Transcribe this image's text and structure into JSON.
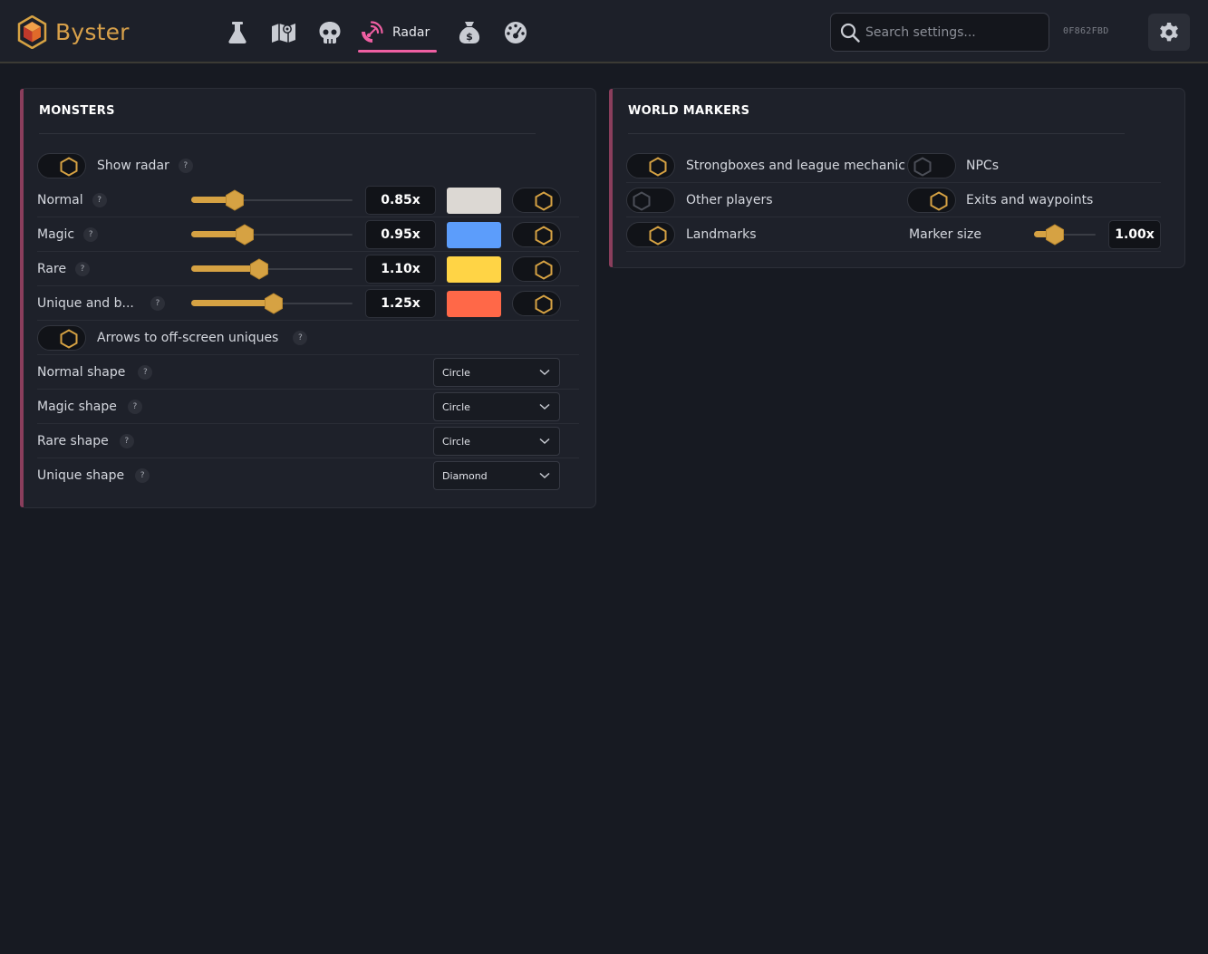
{
  "app": {
    "name": "Byster",
    "hwid": "0F862FBD"
  },
  "nav": {
    "items": [
      {
        "icon": "flask-icon"
      },
      {
        "icon": "map-icon"
      },
      {
        "icon": "skull-icon"
      },
      {
        "icon": "radar-icon",
        "label": "Radar",
        "active": true
      },
      {
        "icon": "money-bag-icon"
      },
      {
        "icon": "dashboard-icon"
      }
    ]
  },
  "search": {
    "placeholder": "Search settings..."
  },
  "colors": {
    "accent": "#d6a243",
    "active_tab": "#ef5fa2",
    "panel_stripe": "#8a3e5c"
  },
  "monsters": {
    "title": "MONSTERS",
    "show_radar": {
      "label": "Show radar",
      "on": true
    },
    "rows": [
      {
        "label": "Normal",
        "value": "0.85x",
        "fraction": 0.27,
        "color": "#dcd8d3",
        "on": true
      },
      {
        "label": "Magic",
        "value": "0.95x",
        "fraction": 0.33,
        "color": "#5c9dfb",
        "on": true
      },
      {
        "label": "Rare",
        "value": "1.10x",
        "fraction": 0.42,
        "color": "#ffd445",
        "on": true
      },
      {
        "label": "Unique and b...",
        "value": "1.25x",
        "fraction": 0.51,
        "color": "#ff6848",
        "on": true
      }
    ],
    "arrows": {
      "label": "Arrows to off-screen uniques",
      "on": true
    },
    "shapes": [
      {
        "label": "Normal shape",
        "value": "Circle"
      },
      {
        "label": "Magic shape",
        "value": "Circle"
      },
      {
        "label": "Rare shape",
        "value": "Circle"
      },
      {
        "label": "Unique shape",
        "value": "Diamond"
      }
    ]
  },
  "world": {
    "title": "WORLD MARKERS",
    "items": [
      {
        "label": "Strongboxes and league mechanic",
        "on": true
      },
      {
        "label": "NPCs",
        "on": false
      },
      {
        "label": "Other players",
        "on": false
      },
      {
        "label": "Exits and waypoints",
        "on": true
      },
      {
        "label": "Landmarks",
        "on": true
      }
    ],
    "marker_size": {
      "label": "Marker size",
      "value": "1.00x",
      "fraction": 0.34
    }
  },
  "help_glyph": "?"
}
